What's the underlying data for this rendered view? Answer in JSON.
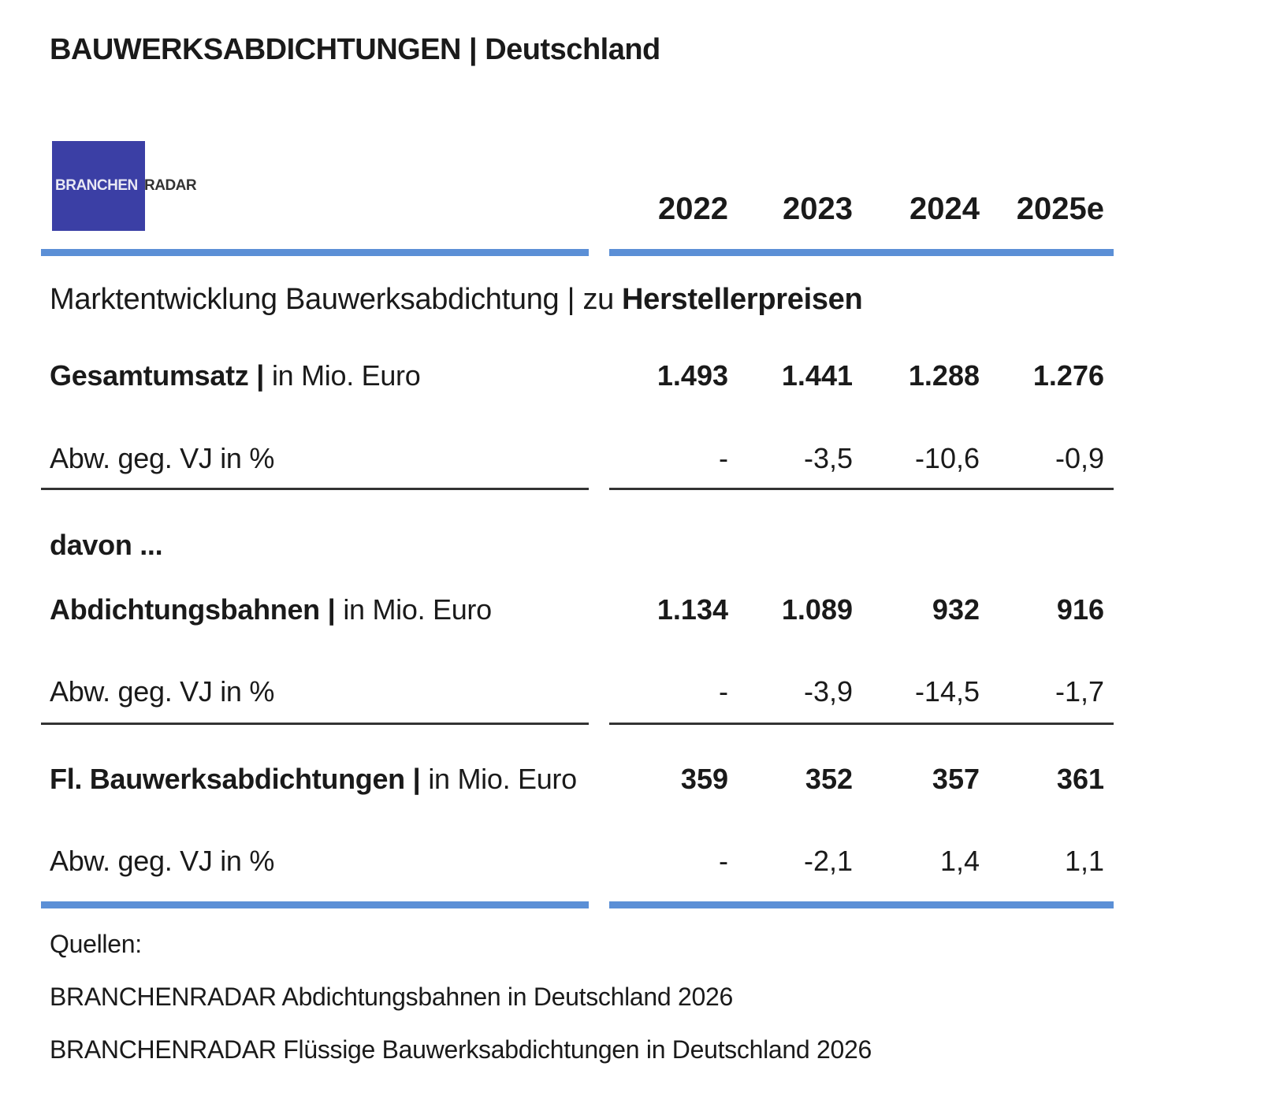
{
  "header": {
    "title": "BAUWERKSABDICHTUNGEN | Deutschland"
  },
  "logo": {
    "left": "BRANCHEN",
    "right": "RADAR"
  },
  "table": {
    "columns": [
      "2022",
      "2023",
      "2024",
      "2025e"
    ],
    "section": {
      "label": "Marktentwicklung Bauwerksabdichtung | zu",
      "emphasis": "Herstellerpreisen"
    },
    "groups": [
      {
        "name": "Gesamtumsatz |",
        "unit": "in Mio. Euro",
        "values": [
          "1.493",
          "1.441",
          "1.288",
          "1.276"
        ],
        "change_label": "Abw. geg. VJ in %",
        "change": [
          "-",
          "-3,5",
          "-10,6",
          "-0,9"
        ]
      },
      {
        "intro": "davon ...",
        "name": "Abdichtungsbahnen |",
        "unit": "in Mio. Euro",
        "values": [
          "1.134",
          "1.089",
          "932",
          "916"
        ],
        "change_label": "Abw. geg. VJ in %",
        "change": [
          "-",
          "-3,9",
          "-14,5",
          "-1,7"
        ]
      },
      {
        "name": "Fl. Bauwerksabdichtungen |",
        "unit": "in Mio. Euro",
        "values": [
          "359",
          "352",
          "357",
          "361"
        ],
        "change_label": "Abw. geg. VJ in %",
        "change": [
          "-",
          "-2,1",
          "1,4",
          "1,1"
        ]
      }
    ]
  },
  "sources": {
    "heading": "Quellen:",
    "items": [
      "BRANCHENRADAR Abdichtungsbahnen in Deutschland 2026",
      "BRANCHENRADAR Flüssige Bauwerksabdichtungen in Deutschland 2026"
    ]
  }
}
